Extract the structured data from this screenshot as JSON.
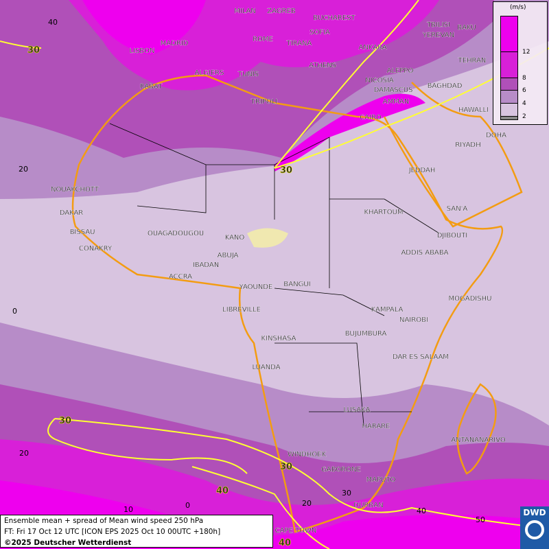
{
  "colors": {
    "background": "#d8c4e0",
    "band_4_6": "#b78cc8",
    "band_6_8": "#b050b8",
    "band_8_12": "#d820d8",
    "band_12": "#ee00ee",
    "coast": "#f39c12",
    "contour": "#ffff33",
    "spread_low": "#f0e8b0"
  },
  "legend": {
    "unit": "(m/s)",
    "ticks": [
      "12",
      "8",
      "6",
      "4",
      "2"
    ]
  },
  "info": {
    "line1": "Ensemble mean + spread of Mean wind speed 250 hPa",
    "line2": "FT: Fri 17 Oct 12 UTC [ICON EPS 2025 Oct 10 00UTC +180h]",
    "line3": "©2025 Deutscher Wetterdienst"
  },
  "logo": {
    "text": "DWD"
  },
  "grid_labels": [
    "40",
    "20",
    "0",
    "20",
    "10",
    "0",
    "20",
    "30",
    "40",
    "50"
  ],
  "contour_labels": [
    "30",
    "30",
    "30",
    "30",
    "40",
    "40"
  ],
  "cities": [
    "MILAN",
    "ZAGREB",
    "BUCHAREST",
    "TBILISI",
    "BAKU",
    "MADRID",
    "ROME",
    "SOFIA",
    "YEREVAN",
    "LISBON",
    "TIRANA",
    "ANKARA",
    "TEHRAN",
    "ALGIERS",
    "TUNIS",
    "ATHENS",
    "ALEPPO",
    "NICOSIA",
    "RABAT",
    "BAGHDAD",
    "DAMASCUS",
    "TRIPOLI",
    "AMMAN",
    "HAWALLI",
    "CAIRO",
    "DOHA",
    "RIYADH",
    "JEDDAH",
    "NOUAKCHOTT",
    "SAN'A",
    "DAKAR",
    "KHARTOUM",
    "BISSAU",
    "OUAGADOUGOU",
    "KANO",
    "DJIBOUTI",
    "CONAKRY",
    "ABUJA",
    "ADDIS ABABA",
    "IBADAN",
    "ACCRA",
    "YAOUNDE",
    "BANGUI",
    "MOGADISHU",
    "LIBREVILLE",
    "KAMPALA",
    "NAIROBI",
    "KINSHASA",
    "BUJUMBURA",
    "DAR ES SALAAM",
    "LUANDA",
    "LUSAKA",
    "HARARE",
    "ANTANANARIVO",
    "WINDHOEK",
    "GABORONE",
    "MAPUTO",
    "DURBAN",
    "CAPE TOWN"
  ]
}
